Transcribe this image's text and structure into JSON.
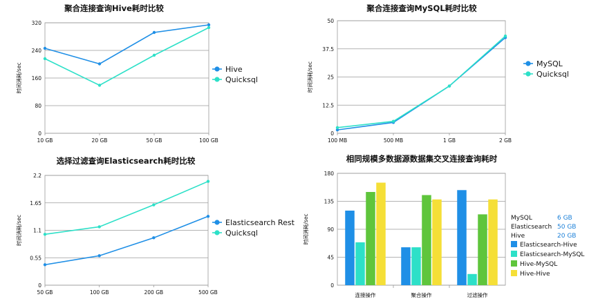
{
  "colors": {
    "blue": "#1f8fe6",
    "teal": "#2de0c8",
    "green": "#5fc53c",
    "yellow": "#f5df37",
    "info_value": "#1a7fd8"
  },
  "chart_data": [
    {
      "type": "line",
      "title": "聚合连接查询Hive耗时比较",
      "ylabel": "时间消耗/sec",
      "xlabel": "",
      "categories": [
        "10 GB",
        "20 GB",
        "50 GB",
        "100 GB"
      ],
      "yticks": [
        "0",
        "80",
        "160",
        "240",
        "320"
      ],
      "ylim": [
        0,
        320
      ],
      "legend_position": "right",
      "series": [
        {
          "name": "Hive",
          "color": "#1f8fe6",
          "values": [
            246,
            201,
            292,
            314
          ]
        },
        {
          "name": "Quicksql",
          "color": "#2de0c8",
          "values": [
            216,
            139,
            226,
            306
          ]
        }
      ]
    },
    {
      "type": "line",
      "title": "聚合连接查询MySQL耗时比较",
      "ylabel": "时间消耗/sec",
      "xlabel": "",
      "categories": [
        "100 MB",
        "500 MB",
        "1 GB",
        "2 GB"
      ],
      "yticks": [
        "0",
        "12.5",
        "25",
        "37.5",
        "50"
      ],
      "ylim": [
        0,
        50
      ],
      "legend_position": "right",
      "series": [
        {
          "name": "MySQL",
          "color": "#1f8fe6",
          "values": [
            1.5,
            4.8,
            21,
            42.5
          ]
        },
        {
          "name": "Quicksql",
          "color": "#2de0c8",
          "values": [
            2.5,
            5.3,
            21,
            43.2
          ]
        }
      ]
    },
    {
      "type": "line",
      "title": "选择过滤查询Elasticsearch耗时比较",
      "ylabel": "时间消耗/sec",
      "xlabel": "",
      "categories": [
        "50 GB",
        "100 GB",
        "200 GB",
        "500 GB"
      ],
      "yticks": [
        "0",
        "0.55",
        "1.1",
        "1.65",
        "2.2"
      ],
      "ylim": [
        0,
        2.2
      ],
      "legend_position": "right",
      "series": [
        {
          "name": "Elasticsearch Rest",
          "color": "#1f8fe6",
          "values": [
            0.41,
            0.59,
            0.95,
            1.38
          ]
        },
        {
          "name": "Quicksql",
          "color": "#2de0c8",
          "values": [
            1.02,
            1.17,
            1.61,
            2.08
          ]
        }
      ]
    },
    {
      "type": "bar",
      "title": "相同规模多数据源数据集交叉连接查询耗时",
      "ylabel": "时间消耗/sec",
      "xlabel": "",
      "categories": [
        "连接操作",
        "聚合操作",
        "过滤操作"
      ],
      "yticks": [
        "0",
        "45",
        "90",
        "135",
        "180"
      ],
      "ylim": [
        0,
        180
      ],
      "legend_position": "right",
      "series": [
        {
          "name": "Elasticsearch-Hive",
          "color": "#1f8fe6",
          "values": [
            120,
            61,
            153
          ]
        },
        {
          "name": "Elasticsearch-MySQL",
          "color": "#2de0c8",
          "values": [
            69,
            61,
            18
          ]
        },
        {
          "name": "Hive-MySQL",
          "color": "#5fc53c",
          "values": [
            150,
            145,
            114
          ]
        },
        {
          "name": "Hive-Hive",
          "color": "#f5df37",
          "values": [
            165,
            138,
            138
          ]
        }
      ],
      "info_table": [
        {
          "label": "MySQL",
          "value": "6 GB"
        },
        {
          "label": "Elasticsearch",
          "value": "50 GB"
        },
        {
          "label": "Hive",
          "value": "20 GB"
        }
      ]
    }
  ]
}
